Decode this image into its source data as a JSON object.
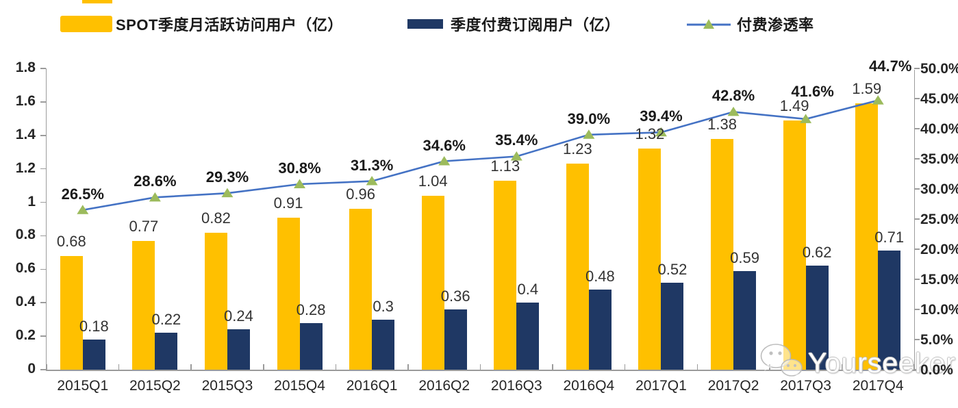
{
  "legend": [
    {
      "label": "SPOT季度月活跃访问用户（亿）",
      "color": "#FFC000"
    },
    {
      "label": "季度付费订阅用户（亿）",
      "color": "#1F3864"
    },
    {
      "label": "付费渗透率",
      "color": "#4472C4",
      "marker_color": "#9CBB5C"
    }
  ],
  "chart_data": {
    "type": "bar+line",
    "categories": [
      "2015Q1",
      "2015Q2",
      "2015Q3",
      "2015Q4",
      "2016Q1",
      "2016Q2",
      "2016Q3",
      "2016Q4",
      "2017Q1",
      "2017Q2",
      "2017Q3",
      "2017Q4"
    ],
    "series": [
      {
        "name": "SPOT季度月活跃访问用户（亿）",
        "type": "bar",
        "axis": "left",
        "color": "#FFC000",
        "values": [
          0.68,
          0.77,
          0.82,
          0.91,
          0.96,
          1.04,
          1.13,
          1.23,
          1.32,
          1.38,
          1.49,
          1.59
        ],
        "labels": [
          "0.68",
          "0.77",
          "0.82",
          "0.91",
          "0.96",
          "1.04",
          "1.13",
          "1.23",
          "1.32",
          "1.38",
          "1.49",
          "1.59"
        ]
      },
      {
        "name": "季度付费订阅用户（亿）",
        "type": "bar",
        "axis": "left",
        "color": "#1F3864",
        "values": [
          0.18,
          0.22,
          0.24,
          0.28,
          0.3,
          0.36,
          0.4,
          0.48,
          0.52,
          0.59,
          0.62,
          0.71
        ],
        "labels": [
          "0.18",
          "0.22",
          "0.24",
          "0.28",
          "0.3",
          "0.36",
          "0.4",
          "0.48",
          "0.52",
          "0.59",
          "0.62",
          "0.71"
        ]
      },
      {
        "name": "付费渗透率",
        "type": "line",
        "axis": "right",
        "color": "#4472C4",
        "marker": "triangle",
        "marker_color": "#9CBB5C",
        "values": [
          26.5,
          28.6,
          29.3,
          30.8,
          31.3,
          34.6,
          35.4,
          39.0,
          39.4,
          42.8,
          41.6,
          44.7
        ],
        "labels": [
          "26.5%",
          "28.6%",
          "29.3%",
          "30.8%",
          "31.3%",
          "34.6%",
          "35.4%",
          "39.0%",
          "39.4%",
          "42.8%",
          "41.6%",
          "44.7%"
        ]
      }
    ],
    "left_axis": {
      "min": 0,
      "max": 1.8,
      "tick_labels": [
        "0",
        "0.2",
        "0.4",
        "0.6",
        "0.8",
        "1",
        "1.2",
        "1.4",
        "1.6",
        "1.8"
      ]
    },
    "right_axis": {
      "min": 0,
      "max": 50,
      "tick_labels": [
        "0.0%",
        "5.0%",
        "10.0%",
        "15.0%",
        "20.0%",
        "25.0%",
        "30.0%",
        "35.0%",
        "40.0%",
        "45.0%",
        "50.0%"
      ]
    },
    "grid": false,
    "legend_position": "top",
    "pct_label_offsets": {
      "10": [
        10,
        -53
      ],
      "11": [
        18,
        -63
      ]
    }
  },
  "watermark": {
    "text": "Yourseeker",
    "icon": "wechat-icon"
  }
}
